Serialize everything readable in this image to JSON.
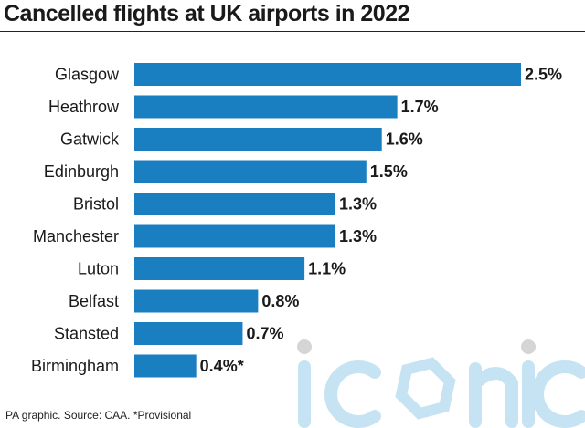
{
  "title": "Cancelled flights at UK airports in 2022",
  "footer": "PA graphic. Source: CAA. *Provisional",
  "watermark_text": "iconic",
  "bar_color": "#1a7fc1",
  "chart_data": {
    "type": "bar",
    "orientation": "horizontal",
    "categories": [
      "Glasgow",
      "Heathrow",
      "Gatwick",
      "Edinburgh",
      "Bristol",
      "Manchester",
      "Luton",
      "Belfast",
      "Stansted",
      "Birmingham"
    ],
    "values": [
      2.5,
      1.7,
      1.6,
      1.5,
      1.3,
      1.3,
      1.1,
      0.8,
      0.7,
      0.4
    ],
    "value_labels": [
      "2.5%",
      "1.7%",
      "1.6%",
      "1.5%",
      "1.3%",
      "1.3%",
      "1.1%",
      "0.8%",
      "0.7%",
      "0.4%*"
    ],
    "title": "Cancelled flights at UK airports in 2022",
    "xlim": [
      0,
      2.5
    ],
    "grid": false,
    "legend": "none"
  }
}
